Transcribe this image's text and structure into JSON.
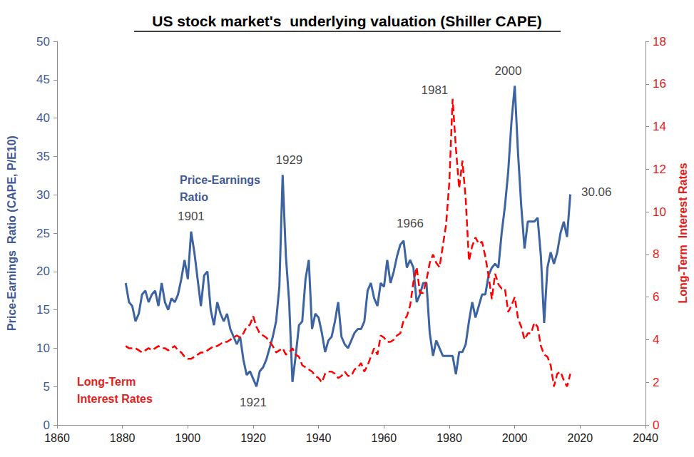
{
  "chart_data": {
    "type": "line",
    "title": "US stock market's  underlying valuation (Shiller CAPE)",
    "y_label": "Price-Earnings  Ratio (CAPE, P/E10)",
    "y2_label": "Long-Term  Interest Rates",
    "xlim": [
      1860,
      2040
    ],
    "xticks": [
      1860,
      1880,
      1900,
      1920,
      1940,
      1960,
      1980,
      2000,
      2020,
      2040
    ],
    "ylim": [
      0,
      50
    ],
    "yticks": [
      0,
      5,
      10,
      15,
      20,
      25,
      30,
      35,
      40,
      45,
      50
    ],
    "y2lim": [
      0,
      18
    ],
    "y2ticks": [
      0,
      2,
      4,
      6,
      8,
      10,
      12,
      14,
      16,
      18
    ],
    "grid": false,
    "x": [
      1881,
      1882,
      1883,
      1884,
      1885,
      1886,
      1887,
      1888,
      1889,
      1890,
      1891,
      1892,
      1893,
      1894,
      1895,
      1896,
      1897,
      1898,
      1899,
      1900,
      1901,
      1902,
      1903,
      1904,
      1905,
      1906,
      1907,
      1908,
      1909,
      1910,
      1911,
      1912,
      1913,
      1914,
      1915,
      1916,
      1917,
      1918,
      1919,
      1920,
      1921,
      1922,
      1923,
      1924,
      1925,
      1926,
      1927,
      1928,
      1929,
      1930,
      1931,
      1932,
      1933,
      1934,
      1935,
      1936,
      1937,
      1938,
      1939,
      1940,
      1941,
      1942,
      1943,
      1944,
      1945,
      1946,
      1947,
      1948,
      1949,
      1950,
      1951,
      1952,
      1953,
      1954,
      1955,
      1956,
      1957,
      1958,
      1959,
      1960,
      1961,
      1962,
      1963,
      1964,
      1965,
      1966,
      1967,
      1968,
      1969,
      1970,
      1971,
      1972,
      1973,
      1974,
      1975,
      1976,
      1977,
      1978,
      1979,
      1980,
      1981,
      1982,
      1983,
      1984,
      1985,
      1986,
      1987,
      1988,
      1989,
      1990,
      1991,
      1992,
      1993,
      1994,
      1995,
      1996,
      1997,
      1998,
      1999,
      2000,
      2001,
      2002,
      2003,
      2004,
      2005,
      2006,
      2007,
      2008,
      2009,
      2010,
      2011,
      2012,
      2013,
      2014,
      2015,
      2016,
      2017
    ],
    "series": [
      {
        "name": "Price-Earnings\nRatio",
        "color": "#3d64a0",
        "line_style": "solid",
        "values": [
          18.5,
          16.0,
          15.5,
          13.5,
          14.5,
          17.0,
          17.5,
          16.0,
          17.0,
          17.5,
          15.5,
          18.5,
          16.0,
          15.0,
          16.5,
          16.0,
          17.0,
          19.0,
          21.5,
          19.0,
          25.2,
          22.5,
          19.0,
          15.5,
          19.5,
          20.0,
          15.0,
          13.0,
          16.0,
          14.5,
          13.5,
          14.5,
          12.5,
          11.5,
          10.5,
          11.5,
          8.5,
          6.5,
          7.0,
          6.0,
          5.0,
          7.0,
          7.5,
          8.5,
          10.0,
          11.5,
          13.5,
          18.0,
          32.6,
          22.0,
          16.0,
          5.6,
          9.0,
          13.0,
          13.5,
          19.0,
          21.5,
          12.5,
          14.5,
          14.0,
          12.0,
          9.5,
          11.0,
          11.5,
          13.5,
          16.0,
          11.5,
          10.5,
          10.0,
          11.0,
          12.0,
          12.5,
          12.5,
          13.5,
          17.5,
          18.5,
          16.5,
          15.5,
          18.5,
          18.0,
          21.5,
          18.5,
          20.0,
          22.0,
          23.5,
          24.0,
          20.5,
          21.5,
          20.5,
          16.0,
          17.0,
          18.5,
          18.5,
          12.0,
          9.0,
          11.0,
          10.0,
          9.0,
          9.0,
          9.0,
          9.0,
          6.6,
          9.5,
          9.5,
          10.5,
          13.5,
          16.0,
          14.0,
          15.5,
          17.0,
          17.0,
          19.5,
          20.5,
          21.0,
          20.5,
          25.0,
          28.5,
          33.0,
          39.5,
          44.2,
          35.5,
          28.5,
          23.0,
          26.5,
          26.5,
          26.5,
          27.0,
          22.0,
          13.3,
          20.5,
          22.5,
          21.0,
          22.5,
          25.0,
          26.5,
          24.5,
          30.06
        ]
      },
      {
        "name": "Long-Term\nInterest Rates",
        "color": "#ff0000",
        "line_style": "dashed",
        "axis": "y2",
        "values": [
          3.7,
          3.6,
          3.6,
          3.6,
          3.5,
          3.4,
          3.5,
          3.6,
          3.5,
          3.6,
          3.7,
          3.6,
          3.6,
          3.5,
          3.6,
          3.7,
          3.5,
          3.4,
          3.2,
          3.1,
          3.1,
          3.2,
          3.3,
          3.4,
          3.4,
          3.5,
          3.6,
          3.7,
          3.7,
          3.8,
          3.9,
          3.9,
          4.0,
          4.1,
          4.2,
          4.1,
          4.3,
          4.6,
          4.7,
          5.1,
          4.6,
          4.3,
          4.2,
          4.1,
          3.9,
          3.7,
          3.4,
          3.5,
          3.6,
          3.3,
          3.4,
          3.6,
          3.3,
          3.2,
          2.8,
          2.7,
          2.6,
          2.5,
          2.3,
          2.2,
          2.0,
          2.4,
          2.5,
          2.5,
          2.4,
          2.2,
          2.3,
          2.5,
          2.3,
          2.3,
          2.6,
          2.7,
          2.9,
          2.5,
          2.8,
          3.2,
          3.6,
          3.3,
          4.2,
          4.1,
          3.9,
          3.9,
          4.0,
          4.2,
          4.3,
          4.9,
          5.1,
          5.6,
          6.7,
          7.4,
          6.2,
          6.2,
          6.8,
          7.6,
          8.0,
          7.6,
          7.4,
          8.4,
          9.4,
          11.4,
          15.3,
          13.0,
          11.1,
          12.4,
          10.6,
          7.7,
          8.4,
          8.8,
          8.5,
          8.6,
          7.9,
          7.0,
          5.9,
          7.1,
          6.6,
          6.4,
          6.4,
          5.3,
          5.6,
          6.0,
          5.0,
          4.6,
          4.0,
          4.3,
          4.3,
          4.8,
          4.6,
          3.7,
          3.3,
          3.2,
          2.8,
          1.8,
          2.4,
          2.5,
          2.1,
          1.8,
          2.4
        ]
      }
    ],
    "annotations": [
      {
        "text": "1901",
        "x": 1901,
        "y": 27.2
      },
      {
        "text": "1929",
        "x": 1931,
        "y": 34.5
      },
      {
        "text": "1921",
        "x": 1920,
        "y": 2.9
      },
      {
        "text": "1966",
        "x": 1968,
        "y": 26.3
      },
      {
        "text": "1981",
        "x": 1975.5,
        "y": 43.6
      },
      {
        "text": "2000",
        "x": 1998,
        "y": 46.1
      },
      {
        "text": "30.06",
        "x": 2025,
        "y": 30.3
      }
    ]
  }
}
